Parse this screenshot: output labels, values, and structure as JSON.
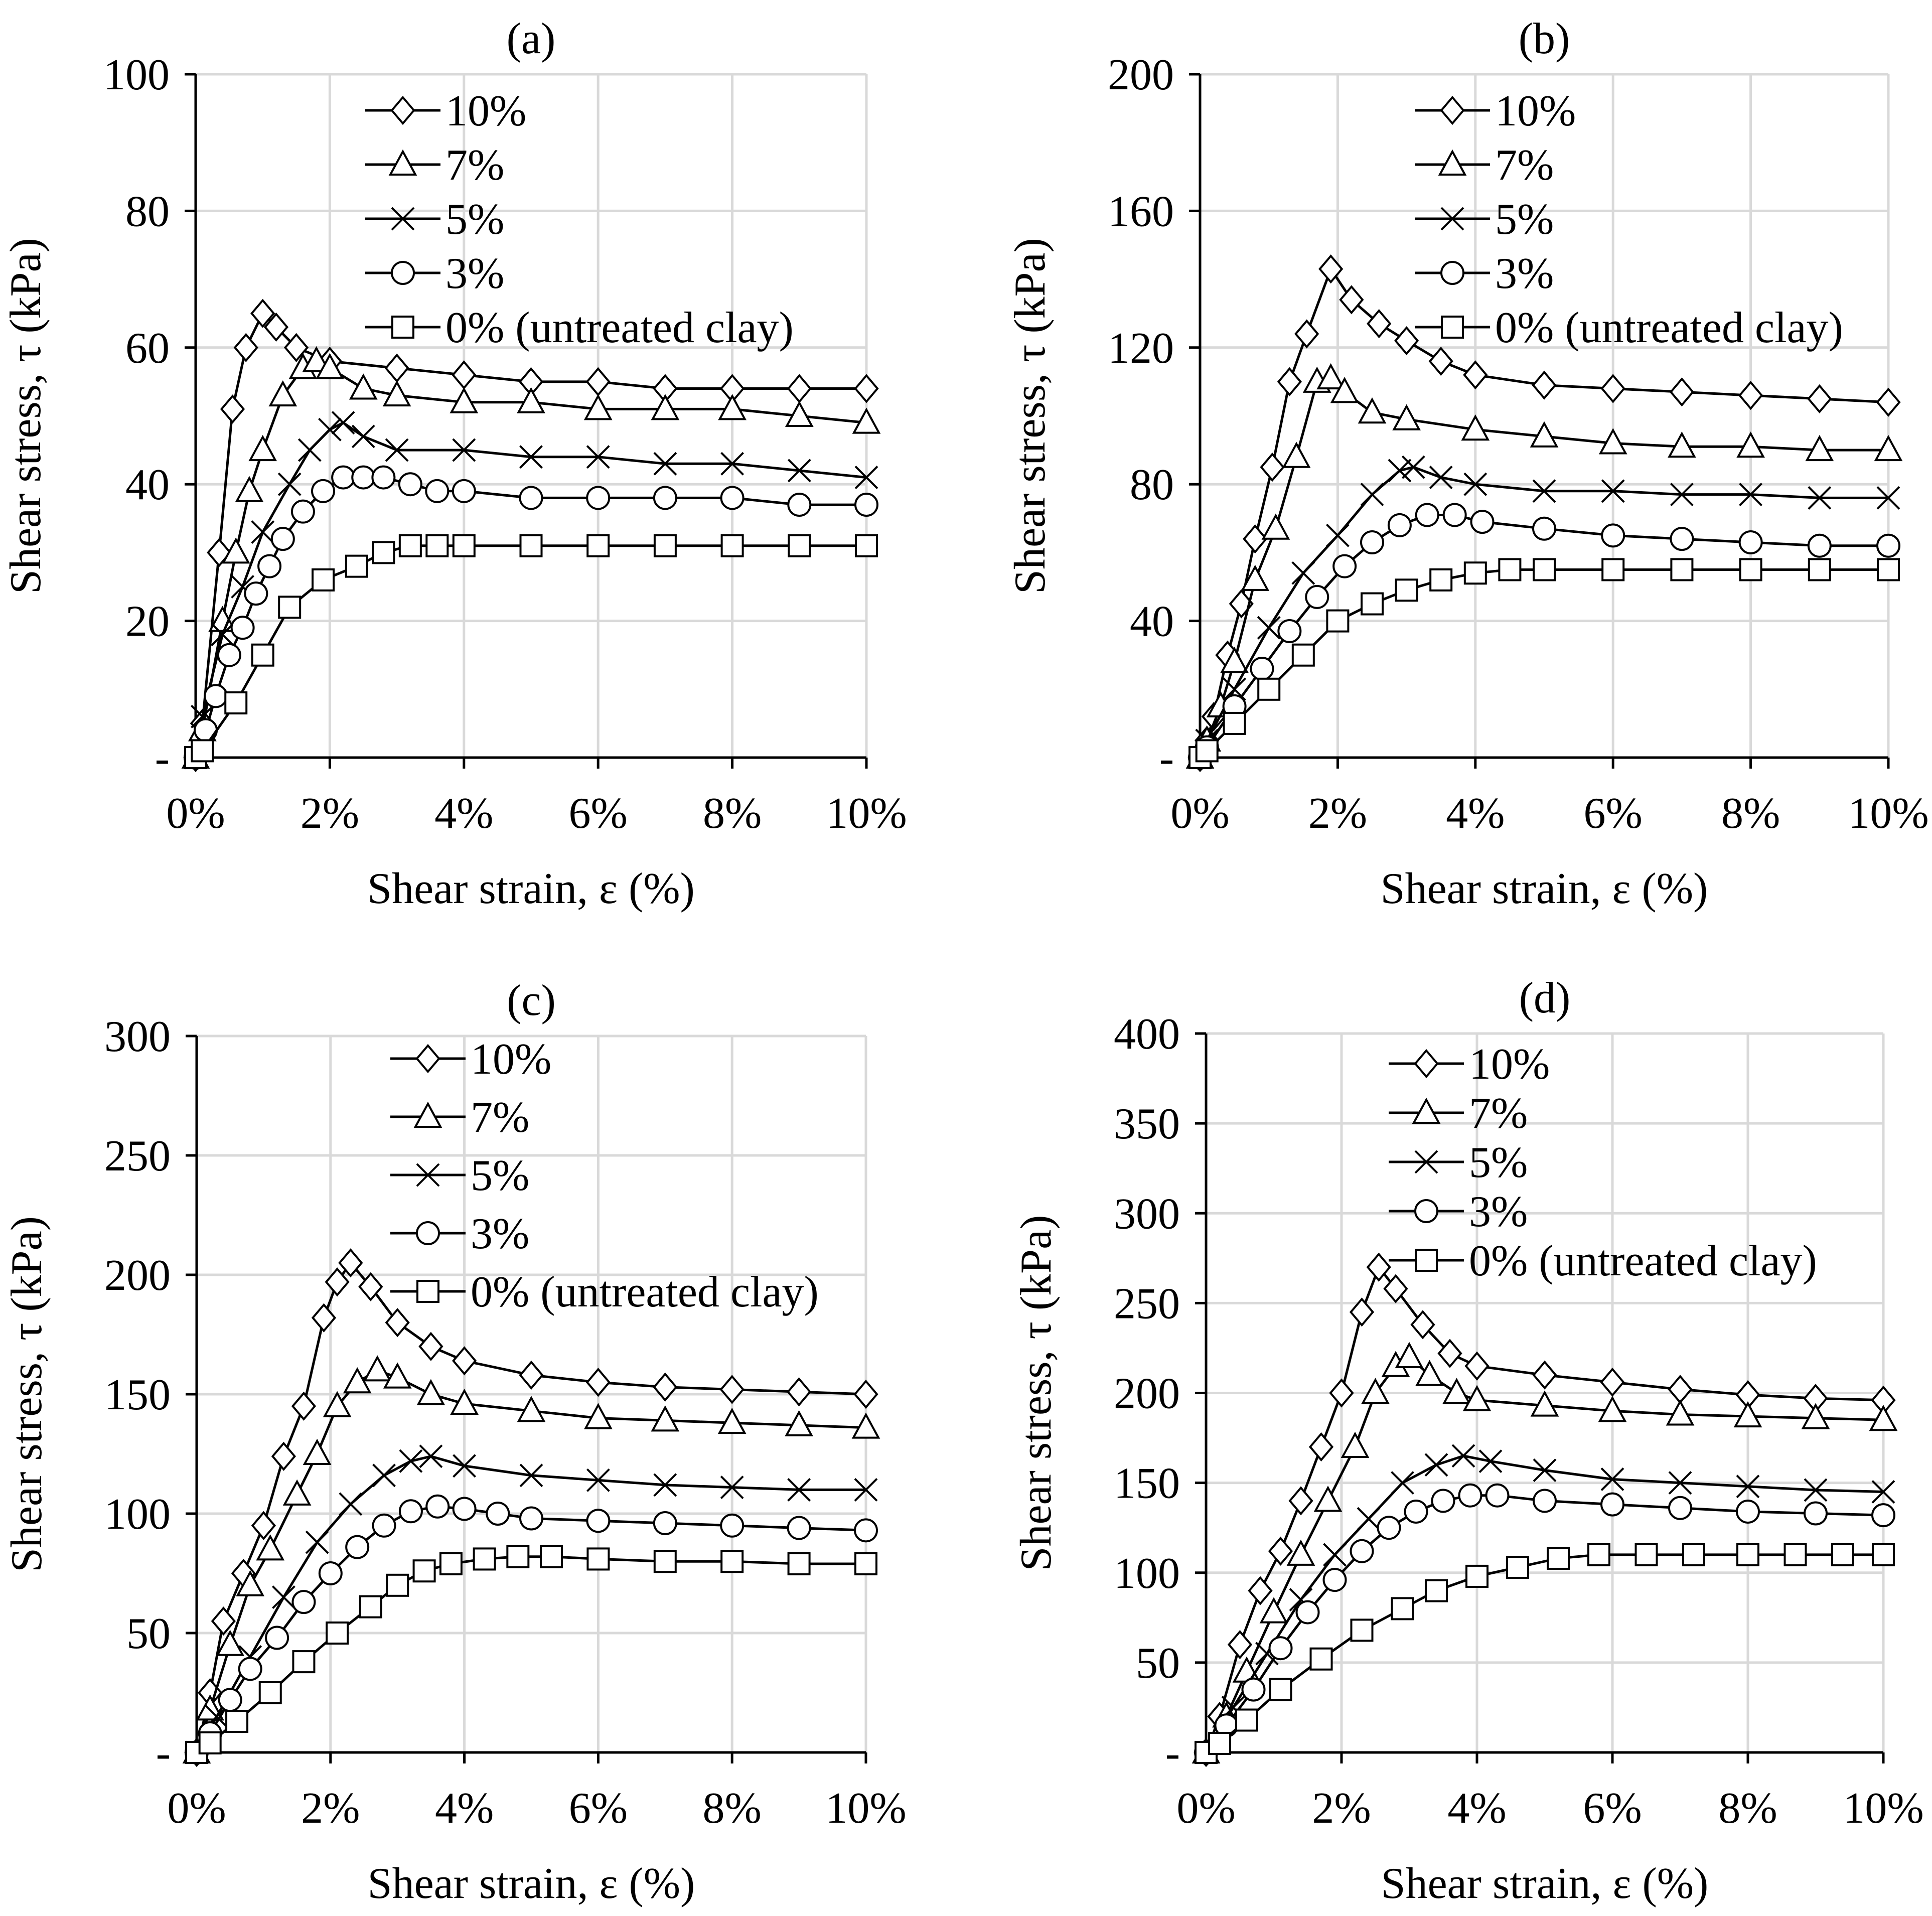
{
  "colors": {
    "background": "#ffffff",
    "ink": "#000000",
    "grid": "#d9d9d9",
    "marker_fill": "#ffffff"
  },
  "chart_data": [
    {
      "type": "line",
      "title": "(a)",
      "xlabel": "Shear strain, ε (%)",
      "ylabel": "Shear stress, τ (kPa)",
      "xlim": [
        0,
        10
      ],
      "ylim": [
        0,
        100
      ],
      "xticks": [
        0,
        2,
        4,
        6,
        8,
        10
      ],
      "xtick_labels": [
        "0%",
        "2%",
        "4%",
        "6%",
        "8%",
        "10%"
      ],
      "yticks": [
        0,
        20,
        40,
        60,
        80,
        100
      ],
      "ytick_labels": [
        "-",
        "20",
        "40",
        "60",
        "80",
        "100"
      ],
      "legend_position": "top-center",
      "series": [
        {
          "name": "10%",
          "marker": "diamond",
          "x": [
            0,
            0.1,
            0.35,
            0.55,
            0.75,
            1.0,
            1.2,
            1.5,
            2.0,
            3.0,
            4.0,
            5.0,
            6.0,
            7.0,
            8.0,
            9.0,
            10.0
          ],
          "y": [
            0,
            5,
            30,
            51,
            60,
            65,
            63,
            60,
            58,
            57,
            56,
            55,
            55,
            54,
            54,
            54,
            54
          ]
        },
        {
          "name": "7%",
          "marker": "triangle",
          "x": [
            0,
            0.1,
            0.4,
            0.6,
            0.8,
            1.0,
            1.3,
            1.6,
            1.8,
            2.0,
            2.5,
            3.0,
            4.0,
            5.0,
            6.0,
            7.0,
            8.0,
            9.0,
            10.0
          ],
          "y": [
            0,
            4,
            20,
            30,
            39,
            45,
            53,
            57,
            58,
            57,
            54,
            53,
            52,
            52,
            51,
            51,
            51,
            50,
            49
          ]
        },
        {
          "name": "5%",
          "marker": "x",
          "x": [
            0,
            0.1,
            0.4,
            0.7,
            1.0,
            1.4,
            1.7,
            2.0,
            2.2,
            2.5,
            3.0,
            4.0,
            5.0,
            6.0,
            7.0,
            8.0,
            9.0,
            10.0
          ],
          "y": [
            0,
            6,
            18,
            25,
            33,
            40,
            45,
            48,
            49,
            47,
            45,
            45,
            44,
            44,
            43,
            43,
            42,
            41
          ]
        },
        {
          "name": "3%",
          "marker": "circle",
          "x": [
            0,
            0.15,
            0.3,
            0.5,
            0.7,
            0.9,
            1.1,
            1.3,
            1.6,
            1.9,
            2.2,
            2.5,
            2.8,
            3.2,
            3.6,
            4.0,
            5.0,
            6.0,
            7.0,
            8.0,
            9.0,
            10.0
          ],
          "y": [
            0,
            4,
            9,
            15,
            19,
            24,
            28,
            32,
            36,
            39,
            41,
            41,
            41,
            40,
            39,
            39,
            38,
            38,
            38,
            38,
            37,
            37
          ]
        },
        {
          "name": "0% (untreated clay)",
          "marker": "square",
          "x": [
            0,
            0.1,
            0.6,
            1.0,
            1.4,
            1.9,
            2.4,
            2.8,
            3.2,
            3.6,
            4.0,
            5.0,
            6.0,
            7.0,
            8.0,
            9.0,
            10.0
          ],
          "y": [
            0,
            1,
            8,
            15,
            22,
            26,
            28,
            30,
            31,
            31,
            31,
            31,
            31,
            31,
            31,
            31,
            31
          ]
        }
      ]
    },
    {
      "type": "line",
      "title": "(b)",
      "xlabel": "Shear strain, ε (%)",
      "ylabel": "Shear stress, τ (kPa)",
      "xlim": [
        0,
        10
      ],
      "ylim": [
        0,
        200
      ],
      "xticks": [
        0,
        2,
        4,
        6,
        8,
        10
      ],
      "xtick_labels": [
        "0%",
        "2%",
        "4%",
        "6%",
        "8%",
        "10%"
      ],
      "yticks": [
        0,
        40,
        80,
        120,
        160,
        200
      ],
      "ytick_labels": [
        "-",
        "40",
        "80",
        "120",
        "160",
        "200"
      ],
      "legend_position": "top-right",
      "series": [
        {
          "name": "10%",
          "marker": "diamond",
          "x": [
            0,
            0.1,
            0.2,
            0.4,
            0.6,
            0.8,
            1.05,
            1.3,
            1.55,
            1.9,
            2.2,
            2.6,
            3.0,
            3.5,
            4.0,
            5.0,
            6.0,
            7.0,
            8.0,
            9.0,
            10.0
          ],
          "y": [
            0,
            5,
            12,
            30,
            45,
            64,
            85,
            110,
            124,
            143,
            134,
            127,
            122,
            116,
            112,
            109,
            108,
            107,
            106,
            105,
            104
          ]
        },
        {
          "name": "7%",
          "marker": "triangle",
          "x": [
            0,
            0.1,
            0.3,
            0.5,
            0.8,
            1.1,
            1.4,
            1.7,
            1.9,
            2.1,
            2.5,
            3.0,
            4.0,
            5.0,
            6.0,
            7.0,
            8.0,
            9.0,
            10.0
          ],
          "y": [
            0,
            5,
            15,
            28,
            52,
            67,
            88,
            110,
            111,
            107,
            101,
            99,
            96,
            94,
            92,
            91,
            91,
            90,
            90
          ]
        },
        {
          "name": "5%",
          "marker": "x",
          "x": [
            0,
            0.1,
            0.5,
            1.0,
            1.5,
            2.0,
            2.5,
            2.9,
            3.1,
            3.5,
            4.0,
            5.0,
            6.0,
            7.0,
            8.0,
            9.0,
            10.0
          ],
          "y": [
            0,
            5,
            20,
            38,
            54,
            65,
            77,
            84,
            85,
            82,
            80,
            78,
            78,
            77,
            77,
            76,
            76
          ]
        },
        {
          "name": "3%",
          "marker": "circle",
          "x": [
            0,
            0.1,
            0.5,
            0.9,
            1.3,
            1.7,
            2.1,
            2.5,
            2.9,
            3.3,
            3.7,
            4.1,
            5.0,
            6.0,
            7.0,
            8.0,
            9.0,
            10.0
          ],
          "y": [
            0,
            3,
            15,
            26,
            37,
            47,
            56,
            63,
            68,
            71,
            71,
            69,
            67,
            65,
            64,
            63,
            62,
            62
          ]
        },
        {
          "name": "0% (untreated clay)",
          "marker": "square",
          "x": [
            0,
            0.1,
            0.5,
            1.0,
            1.5,
            2.0,
            2.5,
            3.0,
            3.5,
            4.0,
            4.5,
            5.0,
            6.0,
            7.0,
            8.0,
            9.0,
            10.0
          ],
          "y": [
            0,
            2,
            10,
            20,
            30,
            40,
            45,
            49,
            52,
            54,
            55,
            55,
            55,
            55,
            55,
            55,
            55
          ]
        }
      ]
    },
    {
      "type": "line",
      "title": "(c)",
      "xlabel": "Shear strain, ε (%)",
      "ylabel": "Shear stress, τ (kPa)",
      "xlim": [
        0,
        10
      ],
      "ylim": [
        0,
        300
      ],
      "xticks": [
        0,
        2,
        4,
        6,
        8,
        10
      ],
      "xtick_labels": [
        "0%",
        "2%",
        "4%",
        "6%",
        "8%",
        "10%"
      ],
      "yticks": [
        0,
        50,
        100,
        150,
        200,
        250,
        300
      ],
      "ytick_labels": [
        "-",
        "50",
        "100",
        "150",
        "200",
        "250",
        "300"
      ],
      "legend_position": "top-center",
      "series": [
        {
          "name": "10%",
          "marker": "diamond",
          "x": [
            0,
            0.2,
            0.4,
            0.7,
            1.0,
            1.3,
            1.6,
            1.9,
            2.1,
            2.3,
            2.6,
            3.0,
            3.5,
            4.0,
            5.0,
            6.0,
            7.0,
            8.0,
            9.0,
            10.0
          ],
          "y": [
            0,
            25,
            55,
            75,
            95,
            124,
            145,
            182,
            197,
            205,
            195,
            180,
            170,
            164,
            158,
            155,
            153,
            152,
            151,
            150
          ]
        },
        {
          "name": "7%",
          "marker": "triangle",
          "x": [
            0,
            0.2,
            0.5,
            0.8,
            1.1,
            1.5,
            1.8,
            2.1,
            2.4,
            2.7,
            3.0,
            3.5,
            4.0,
            5.0,
            6.0,
            7.0,
            8.0,
            9.0,
            10.0
          ],
          "y": [
            0,
            18,
            45,
            70,
            85,
            108,
            125,
            145,
            155,
            160,
            157,
            150,
            146,
            143,
            140,
            139,
            138,
            137,
            136
          ]
        },
        {
          "name": "5%",
          "marker": "x",
          "x": [
            0,
            0.3,
            0.8,
            1.3,
            1.8,
            2.3,
            2.8,
            3.2,
            3.5,
            4.0,
            5.0,
            6.0,
            7.0,
            8.0,
            9.0,
            10.0
          ],
          "y": [
            0,
            15,
            40,
            65,
            88,
            104,
            116,
            122,
            124,
            120,
            116,
            114,
            112,
            111,
            110,
            110
          ]
        },
        {
          "name": "3%",
          "marker": "circle",
          "x": [
            0,
            0.2,
            0.5,
            0.8,
            1.2,
            1.6,
            2.0,
            2.4,
            2.8,
            3.2,
            3.6,
            4.0,
            4.5,
            5.0,
            6.0,
            7.0,
            8.0,
            9.0,
            10.0
          ],
          "y": [
            0,
            8,
            22,
            35,
            48,
            63,
            75,
            86,
            95,
            101,
            103,
            102,
            100,
            98,
            97,
            96,
            95,
            94,
            93
          ]
        },
        {
          "name": "0% (untreated clay)",
          "marker": "square",
          "x": [
            0,
            0.2,
            0.6,
            1.1,
            1.6,
            2.1,
            2.6,
            3.0,
            3.4,
            3.8,
            4.3,
            4.8,
            5.3,
            6.0,
            7.0,
            8.0,
            9.0,
            10.0
          ],
          "y": [
            0,
            4,
            13,
            25,
            38,
            50,
            61,
            70,
            76,
            79,
            81,
            82,
            82,
            81,
            80,
            80,
            79,
            79
          ]
        }
      ]
    },
    {
      "type": "line",
      "title": "(d)",
      "xlabel": "Shear strain, ε (%)",
      "ylabel": "Shear stress, τ (kPa)",
      "xlim": [
        0,
        10
      ],
      "ylim": [
        0,
        400
      ],
      "xticks": [
        0,
        2,
        4,
        6,
        8,
        10
      ],
      "xtick_labels": [
        "0%",
        "2%",
        "4%",
        "6%",
        "8%",
        "10%"
      ],
      "yticks": [
        0,
        50,
        100,
        150,
        200,
        250,
        300,
        350,
        400
      ],
      "ytick_labels": [
        "-",
        "50",
        "100",
        "150",
        "200",
        "250",
        "300",
        "350",
        "400"
      ],
      "legend_position": "top-center",
      "series": [
        {
          "name": "10%",
          "marker": "diamond",
          "x": [
            0,
            0.2,
            0.5,
            0.8,
            1.1,
            1.4,
            1.7,
            2.0,
            2.3,
            2.55,
            2.8,
            3.2,
            3.6,
            4.0,
            5.0,
            6.0,
            7.0,
            8.0,
            9.0,
            10.0
          ],
          "y": [
            0,
            20,
            60,
            90,
            112,
            140,
            170,
            200,
            245,
            270,
            258,
            238,
            222,
            215,
            210,
            206,
            202,
            199,
            197,
            196
          ]
        },
        {
          "name": "7%",
          "marker": "triangle",
          "x": [
            0,
            0.3,
            0.6,
            1.0,
            1.4,
            1.8,
            2.2,
            2.5,
            2.8,
            3.0,
            3.3,
            3.7,
            4.0,
            5.0,
            6.0,
            7.0,
            8.0,
            9.0,
            10.0
          ],
          "y": [
            0,
            20,
            45,
            78,
            110,
            140,
            170,
            200,
            215,
            220,
            210,
            200,
            196,
            193,
            190,
            188,
            187,
            186,
            185
          ]
        },
        {
          "name": "5%",
          "marker": "x",
          "x": [
            0,
            0.4,
            0.9,
            1.4,
            1.9,
            2.4,
            2.9,
            3.4,
            3.8,
            4.2,
            5.0,
            6.0,
            7.0,
            8.0,
            9.0,
            10.0
          ],
          "y": [
            0,
            25,
            55,
            85,
            110,
            130,
            150,
            160,
            165,
            162,
            157,
            152,
            150,
            148,
            146,
            145
          ]
        },
        {
          "name": "3%",
          "marker": "circle",
          "x": [
            0,
            0.3,
            0.7,
            1.1,
            1.5,
            1.9,
            2.3,
            2.7,
            3.1,
            3.5,
            3.9,
            4.3,
            5.0,
            6.0,
            7.0,
            8.0,
            9.0,
            10.0
          ],
          "y": [
            0,
            15,
            35,
            58,
            78,
            96,
            112,
            125,
            134,
            140,
            143,
            143,
            140,
            138,
            136,
            134,
            133,
            132
          ]
        },
        {
          "name": "0% (untreated clay)",
          "marker": "square",
          "x": [
            0,
            0.2,
            0.6,
            1.1,
            1.7,
            2.3,
            2.9,
            3.4,
            4.0,
            4.6,
            5.2,
            5.8,
            6.5,
            7.2,
            8.0,
            8.7,
            9.4,
            10.0
          ],
          "y": [
            0,
            5,
            18,
            35,
            52,
            68,
            80,
            90,
            98,
            103,
            108,
            110,
            110,
            110,
            110,
            110,
            110,
            110
          ]
        }
      ]
    }
  ]
}
